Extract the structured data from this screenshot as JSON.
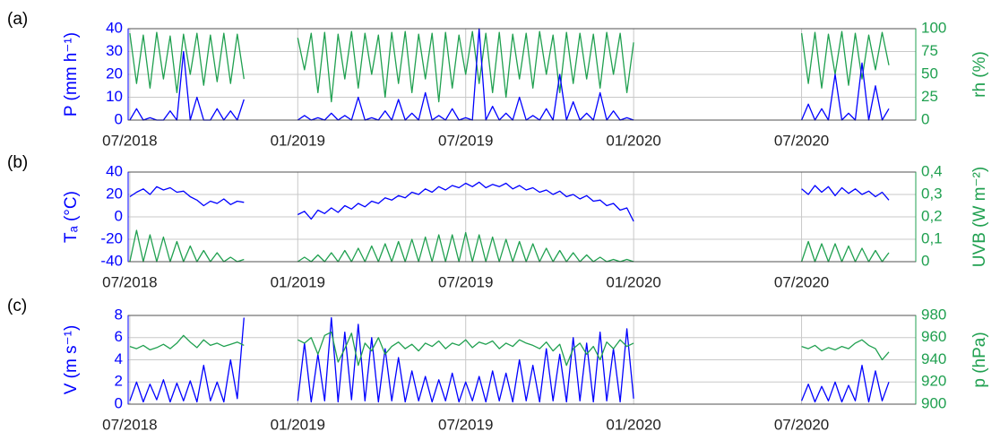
{
  "chart_data": [
    {
      "type": "line",
      "panel_label": "(a)",
      "ylabel": "P (mm h⁻¹)",
      "y2label": "rh (%)",
      "grid": true,
      "x": [
        2018.5,
        2018.52,
        2018.54,
        2018.56,
        2018.58,
        2018.6,
        2018.62,
        2018.64,
        2018.66,
        2018.68,
        2018.7,
        2018.72,
        2018.74,
        2018.76,
        2018.78,
        2018.8,
        2018.82,
        2018.84,
        2018.92,
        2019,
        2019.02,
        2019.04,
        2019.06,
        2019.08,
        2019.1,
        2019.12,
        2019.14,
        2019.16,
        2019.18,
        2019.2,
        2019.22,
        2019.24,
        2019.26,
        2019.28,
        2019.3,
        2019.32,
        2019.34,
        2019.36,
        2019.38,
        2019.4,
        2019.42,
        2019.44,
        2019.46,
        2019.48,
        2019.5,
        2019.52,
        2019.54,
        2019.56,
        2019.58,
        2019.6,
        2019.62,
        2019.64,
        2019.66,
        2019.68,
        2019.7,
        2019.72,
        2019.74,
        2019.76,
        2019.78,
        2019.8,
        2019.82,
        2019.84,
        2019.86,
        2019.88,
        2019.9,
        2019.92,
        2019.94,
        2019.96,
        2019.98,
        2020,
        2020.25,
        2020.5,
        2020.52,
        2020.54,
        2020.56,
        2020.58,
        2020.6,
        2020.62,
        2020.64,
        2020.66,
        2020.68,
        2020.7,
        2020.72,
        2020.74,
        2020.76
      ],
      "xlim": [
        2018.495,
        2020.84
      ],
      "xticks": [
        {
          "value": 2018.5,
          "label": "07/2018"
        },
        {
          "value": 2019,
          "label": "01/2019"
        },
        {
          "value": 2019.5,
          "label": "07/2019"
        },
        {
          "value": 2020,
          "label": "01/2020"
        },
        {
          "value": 2020.5,
          "label": "07/2020"
        }
      ],
      "ylim": [
        0,
        40
      ],
      "yticks": [
        0,
        10,
        20,
        30,
        40
      ],
      "y2lim": [
        0,
        100
      ],
      "y2ticks": [
        0,
        25,
        50,
        75,
        100
      ],
      "series": [
        {
          "axis": "y2",
          "color": "#20a050",
          "values": [
            95,
            40,
            93,
            35,
            96,
            45,
            92,
            30,
            94,
            50,
            95,
            38,
            93,
            42,
            95,
            40,
            94,
            45,
            null,
            90,
            55,
            95,
            30,
            96,
            20,
            94,
            45,
            97,
            35,
            95,
            50,
            93,
            25,
            96,
            40,
            97,
            30,
            94,
            45,
            95,
            20,
            96,
            35,
            93,
            50,
            97,
            40,
            95,
            30,
            96,
            25,
            94,
            45,
            95,
            35,
            97,
            50,
            93,
            30,
            96,
            40,
            95,
            45,
            94,
            35,
            96,
            50,
            95,
            30,
            85,
            null,
            95,
            40,
            96,
            35,
            94,
            50,
            97,
            38,
            95,
            45,
            93,
            55,
            96,
            60
          ]
        },
        {
          "color": "#0000ff",
          "values": [
            0,
            5,
            0,
            1,
            0,
            0,
            4,
            0,
            30,
            0,
            10,
            0,
            0,
            5,
            0,
            4,
            0,
            9,
            null,
            0,
            2,
            0,
            1,
            0,
            3,
            0,
            2,
            0,
            10,
            0,
            1,
            0,
            4,
            0,
            9,
            0,
            3,
            0,
            12,
            0,
            2,
            0,
            5,
            0,
            1,
            0,
            40,
            0,
            6,
            0,
            3,
            0,
            10,
            0,
            2,
            0,
            5,
            0,
            20,
            0,
            8,
            0,
            3,
            0,
            12,
            0,
            4,
            0,
            1,
            0,
            null,
            0,
            7,
            0,
            5,
            0,
            20,
            0,
            3,
            0,
            25,
            0,
            15,
            0,
            5
          ]
        }
      ]
    },
    {
      "type": "line",
      "panel_label": "(b)",
      "ylabel": "Tₐ (°C)",
      "y2label": "UVB (W m⁻²)",
      "grid": true,
      "x": [
        2018.5,
        2018.52,
        2018.54,
        2018.56,
        2018.58,
        2018.6,
        2018.62,
        2018.64,
        2018.66,
        2018.68,
        2018.7,
        2018.72,
        2018.74,
        2018.76,
        2018.78,
        2018.8,
        2018.82,
        2018.84,
        2018.92,
        2019,
        2019.02,
        2019.04,
        2019.06,
        2019.08,
        2019.1,
        2019.12,
        2019.14,
        2019.16,
        2019.18,
        2019.2,
        2019.22,
        2019.24,
        2019.26,
        2019.28,
        2019.3,
        2019.32,
        2019.34,
        2019.36,
        2019.38,
        2019.4,
        2019.42,
        2019.44,
        2019.46,
        2019.48,
        2019.5,
        2019.52,
        2019.54,
        2019.56,
        2019.58,
        2019.6,
        2019.62,
        2019.64,
        2019.66,
        2019.68,
        2019.7,
        2019.72,
        2019.74,
        2019.76,
        2019.78,
        2019.8,
        2019.82,
        2019.84,
        2019.86,
        2019.88,
        2019.9,
        2019.92,
        2019.94,
        2019.96,
        2019.98,
        2020,
        2020.25,
        2020.5,
        2020.52,
        2020.54,
        2020.56,
        2020.58,
        2020.6,
        2020.62,
        2020.64,
        2020.66,
        2020.68,
        2020.7,
        2020.72,
        2020.74,
        2020.76
      ],
      "xlim": [
        2018.495,
        2020.84
      ],
      "xticks": [
        {
          "value": 2018.5,
          "label": "07/2018"
        },
        {
          "value": 2019,
          "label": "01/2019"
        },
        {
          "value": 2019.5,
          "label": "07/2019"
        },
        {
          "value": 2020,
          "label": "01/2020"
        },
        {
          "value": 2020.5,
          "label": "07/2020"
        }
      ],
      "ylim": [
        -40,
        40
      ],
      "yticks": [
        -40,
        -20,
        0,
        20,
        40
      ],
      "y2lim": [
        0,
        0.4
      ],
      "y2ticks": [
        0,
        {
          "value": 0.1,
          "label": "0,1"
        },
        {
          "value": 0.2,
          "label": "0,2"
        },
        {
          "value": 0.3,
          "label": "0,3"
        },
        {
          "value": 0.4,
          "label": "0,4"
        }
      ],
      "series": [
        {
          "color": "#0000ff",
          "values": [
            18,
            22,
            25,
            20,
            27,
            24,
            26,
            22,
            23,
            18,
            15,
            10,
            14,
            12,
            16,
            11,
            14,
            13,
            null,
            2,
            5,
            -2,
            6,
            3,
            8,
            4,
            10,
            7,
            12,
            9,
            14,
            12,
            17,
            15,
            19,
            17,
            22,
            20,
            25,
            22,
            27,
            24,
            28,
            26,
            30,
            27,
            31,
            26,
            29,
            27,
            30,
            25,
            28,
            24,
            26,
            22,
            24,
            20,
            23,
            18,
            20,
            16,
            19,
            14,
            15,
            10,
            12,
            6,
            8,
            -4,
            null,
            25,
            20,
            28,
            22,
            27,
            19,
            26,
            21,
            25,
            20,
            23,
            18,
            22,
            15
          ]
        },
        {
          "axis": "y2",
          "color": "#20a050",
          "values": [
            0,
            0.14,
            0,
            0.12,
            0,
            0.11,
            0,
            0.09,
            0,
            0.07,
            0,
            0.05,
            0,
            0.04,
            0,
            0.02,
            0,
            0.01,
            null,
            0,
            0.02,
            0,
            0.03,
            0,
            0.04,
            0,
            0.05,
            0,
            0.06,
            0,
            0.07,
            0,
            0.08,
            0,
            0.09,
            0,
            0.1,
            0,
            0.11,
            0,
            0.12,
            0,
            0.12,
            0,
            0.13,
            0,
            0.12,
            0,
            0.11,
            0,
            0.1,
            0,
            0.09,
            0,
            0.08,
            0,
            0.06,
            0,
            0.05,
            0,
            0.04,
            0,
            0.03,
            0,
            0.02,
            0,
            0.01,
            0,
            0.01,
            0,
            null,
            0,
            0.09,
            0,
            0.08,
            0,
            0.08,
            0,
            0.07,
            0,
            0.06,
            0,
            0.05,
            0,
            0.04
          ]
        }
      ]
    },
    {
      "type": "line",
      "panel_label": "(c)",
      "ylabel": "V (m s⁻¹)",
      "y2label": "p (hPa)",
      "grid": true,
      "x": [
        2018.5,
        2018.52,
        2018.54,
        2018.56,
        2018.58,
        2018.6,
        2018.62,
        2018.64,
        2018.66,
        2018.68,
        2018.7,
        2018.72,
        2018.74,
        2018.76,
        2018.78,
        2018.8,
        2018.82,
        2018.84,
        2018.92,
        2019,
        2019.02,
        2019.04,
        2019.06,
        2019.08,
        2019.1,
        2019.12,
        2019.14,
        2019.16,
        2019.18,
        2019.2,
        2019.22,
        2019.24,
        2019.26,
        2019.28,
        2019.3,
        2019.32,
        2019.34,
        2019.36,
        2019.38,
        2019.4,
        2019.42,
        2019.44,
        2019.46,
        2019.48,
        2019.5,
        2019.52,
        2019.54,
        2019.56,
        2019.58,
        2019.6,
        2019.62,
        2019.64,
        2019.66,
        2019.68,
        2019.7,
        2019.72,
        2019.74,
        2019.76,
        2019.78,
        2019.8,
        2019.82,
        2019.84,
        2019.86,
        2019.88,
        2019.9,
        2019.92,
        2019.94,
        2019.96,
        2019.98,
        2020,
        2020.25,
        2020.5,
        2020.52,
        2020.54,
        2020.56,
        2020.58,
        2020.6,
        2020.62,
        2020.64,
        2020.66,
        2020.68,
        2020.7,
        2020.72,
        2020.74,
        2020.76
      ],
      "xlim": [
        2018.495,
        2020.84
      ],
      "xticks": [
        {
          "value": 2018.5,
          "label": "07/2018"
        },
        {
          "value": 2019,
          "label": "01/2019"
        },
        {
          "value": 2019.5,
          "label": "07/2019"
        },
        {
          "value": 2020,
          "label": "01/2020"
        },
        {
          "value": 2020.5,
          "label": "07/2020"
        }
      ],
      "ylim": [
        0,
        8
      ],
      "yticks": [
        0,
        2,
        4,
        6,
        8
      ],
      "y2lim": [
        900,
        980
      ],
      "y2ticks": [
        900,
        920,
        940,
        960,
        980
      ],
      "series": [
        {
          "color": "#0000ff",
          "values": [
            0.3,
            2.0,
            0.2,
            1.8,
            0.4,
            2.2,
            0.2,
            1.9,
            0.3,
            2.1,
            0.2,
            3.5,
            0.3,
            2.0,
            0.2,
            4.0,
            0.5,
            7.8,
            null,
            0.3,
            5.5,
            0.2,
            4.5,
            0.3,
            7.8,
            0.2,
            6.5,
            0.4,
            7.2,
            0.3,
            6.0,
            0.2,
            5.0,
            0.3,
            4.2,
            0.2,
            3.0,
            0.3,
            2.5,
            0.2,
            2.2,
            0.3,
            2.8,
            0.2,
            2.0,
            0.3,
            2.5,
            0.2,
            3.0,
            0.3,
            2.8,
            0.2,
            4.0,
            0.3,
            3.5,
            0.2,
            5.0,
            0.3,
            4.5,
            0.2,
            6.0,
            0.3,
            5.5,
            0.2,
            6.5,
            0.3,
            5.0,
            0.2,
            6.8,
            0.5,
            null,
            0.3,
            1.8,
            0.2,
            1.6,
            0.3,
            2.0,
            0.2,
            1.7,
            0.3,
            3.5,
            0.2,
            3.0,
            0.3,
            2.0
          ]
        },
        {
          "axis": "y2",
          "color": "#20a050",
          "values": [
            952,
            950,
            953,
            949,
            951,
            954,
            950,
            955,
            962,
            956,
            951,
            958,
            953,
            955,
            952,
            954,
            956,
            953,
            null,
            958,
            955,
            960,
            945,
            962,
            965,
            938,
            950,
            964,
            935,
            955,
            948,
            960,
            945,
            952,
            956,
            950,
            954,
            948,
            955,
            952,
            957,
            950,
            955,
            953,
            958,
            951,
            956,
            954,
            957,
            950,
            955,
            952,
            958,
            955,
            953,
            950,
            956,
            948,
            954,
            935,
            950,
            955,
            945,
            952,
            940,
            956,
            950,
            958,
            952,
            955,
            null,
            952,
            950,
            953,
            948,
            951,
            949,
            952,
            950,
            955,
            958,
            953,
            950,
            940,
            947
          ]
        }
      ]
    }
  ]
}
